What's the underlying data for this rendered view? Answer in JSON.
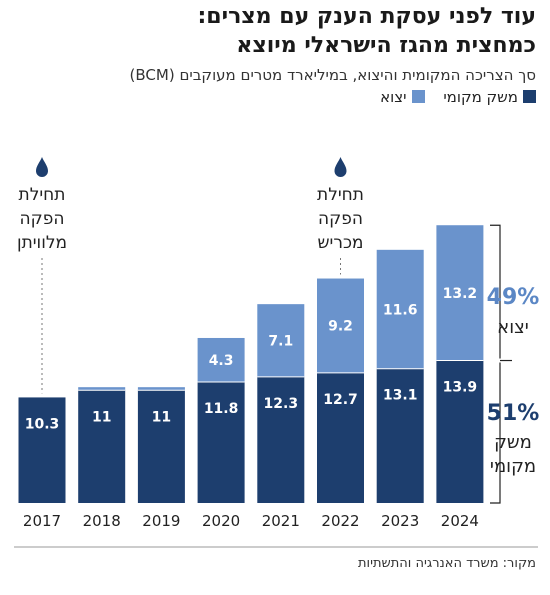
{
  "title_line1": "עוד לפני עסקת הענק עם מצרים:",
  "title_line2": "כמחצית מהגז הישראלי מיוצא",
  "subtitle": "סך הצריכה המקומית והיצוא, במיליארד מטרים מעוקבים (BCM)",
  "source": "מקור: משרד האנרגיה והתשתיות",
  "colors": {
    "domestic": "#1d3e6e",
    "export": "#6a93cc",
    "share_export": "#5b87c5",
    "share_domestic": "#1d3e6e",
    "bracket": "#222222"
  },
  "annotations": [
    {
      "year": "2017",
      "lines": [
        "תחילת",
        "הפקה",
        "מלוויתן"
      ],
      "icon": "drop-icon"
    },
    {
      "year": "2022",
      "lines": [
        "תחילת",
        "הפקה",
        "מכריש"
      ],
      "icon": "drop-icon"
    }
  ],
  "shares": {
    "export": {
      "pct": "49%",
      "label": "יצוא"
    },
    "domestic": {
      "pct": "51%",
      "label_lines": [
        "משק",
        "מקומי"
      ]
    }
  },
  "chart_data": {
    "type": "bar",
    "stacked": true,
    "categories": [
      "2017",
      "2018",
      "2019",
      "2020",
      "2021",
      "2022",
      "2023",
      "2024"
    ],
    "series": [
      {
        "name": "משק מקומי",
        "key": "domestic",
        "values": [
          10.3,
          11,
          11,
          11.8,
          12.3,
          12.7,
          13.1,
          13.9
        ]
      },
      {
        "name": "יצוא",
        "key": "export",
        "values": [
          0,
          0.3,
          0.3,
          4.3,
          7.1,
          9.2,
          11.6,
          13.2
        ]
      }
    ],
    "data_labels": {
      "domestic": [
        "10.3",
        "11",
        "11",
        "11.8",
        "12.3",
        "12.7",
        "13.1",
        "13.9"
      ],
      "export": [
        "",
        "",
        "",
        "4.3",
        "7.1",
        "9.2",
        "11.6",
        "13.2"
      ]
    },
    "ylim": [
      0,
      30
    ],
    "legend_position": "top-right"
  }
}
